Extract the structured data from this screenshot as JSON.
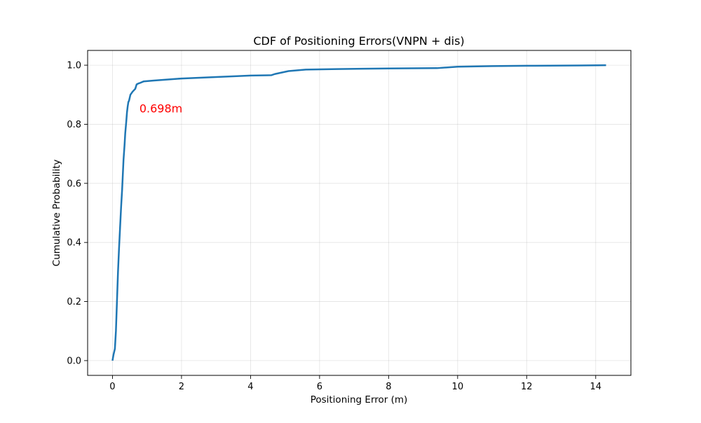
{
  "chart_data": {
    "type": "line",
    "title": "CDF of Positioning Errors(VNPN + dis)",
    "xlabel": "Positioning Error (m)",
    "ylabel": "Cumulative Probability",
    "xlim": [
      -0.72,
      15.02
    ],
    "ylim": [
      -0.05,
      1.05
    ],
    "x_ticks": [
      0,
      2,
      4,
      6,
      8,
      10,
      12,
      14
    ],
    "y_ticks": [
      0.0,
      0.2,
      0.4,
      0.6,
      0.8,
      1.0
    ],
    "x_tick_labels": [
      "0",
      "2",
      "4",
      "6",
      "8",
      "10",
      "12",
      "14"
    ],
    "y_tick_labels": [
      "0.0",
      "0.2",
      "0.4",
      "0.6",
      "0.8",
      "1.0"
    ],
    "grid": true,
    "series": [
      {
        "color": "#1f77b4",
        "x": [
          0.0,
          0.03,
          0.07,
          0.1,
          0.13,
          0.16,
          0.19,
          0.22,
          0.25,
          0.28,
          0.3,
          0.32,
          0.35,
          0.37,
          0.4,
          0.42,
          0.44,
          0.46,
          0.48,
          0.5,
          0.52,
          0.55,
          0.58,
          0.62,
          0.66,
          0.7,
          0.75,
          0.8,
          0.9,
          1.2,
          2.0,
          3.0,
          3.6,
          4.0,
          4.6,
          4.7,
          4.9,
          5.1,
          5.6,
          6.5,
          8.0,
          9.4,
          10.0,
          11.0,
          12.0,
          13.5,
          14.3
        ],
        "y": [
          0.0,
          0.02,
          0.04,
          0.1,
          0.2,
          0.3,
          0.38,
          0.45,
          0.52,
          0.58,
          0.63,
          0.68,
          0.73,
          0.77,
          0.81,
          0.84,
          0.86,
          0.875,
          0.88,
          0.89,
          0.9,
          0.905,
          0.91,
          0.915,
          0.92,
          0.935,
          0.938,
          0.94,
          0.945,
          0.948,
          0.955,
          0.96,
          0.963,
          0.965,
          0.966,
          0.97,
          0.975,
          0.98,
          0.985,
          0.987,
          0.989,
          0.99,
          0.995,
          0.997,
          0.998,
          0.999,
          1.0
        ]
      }
    ],
    "annotations": [
      {
        "text": "0.698m",
        "x": 0.78,
        "y": 0.855,
        "color": "#ff0000"
      }
    ]
  }
}
